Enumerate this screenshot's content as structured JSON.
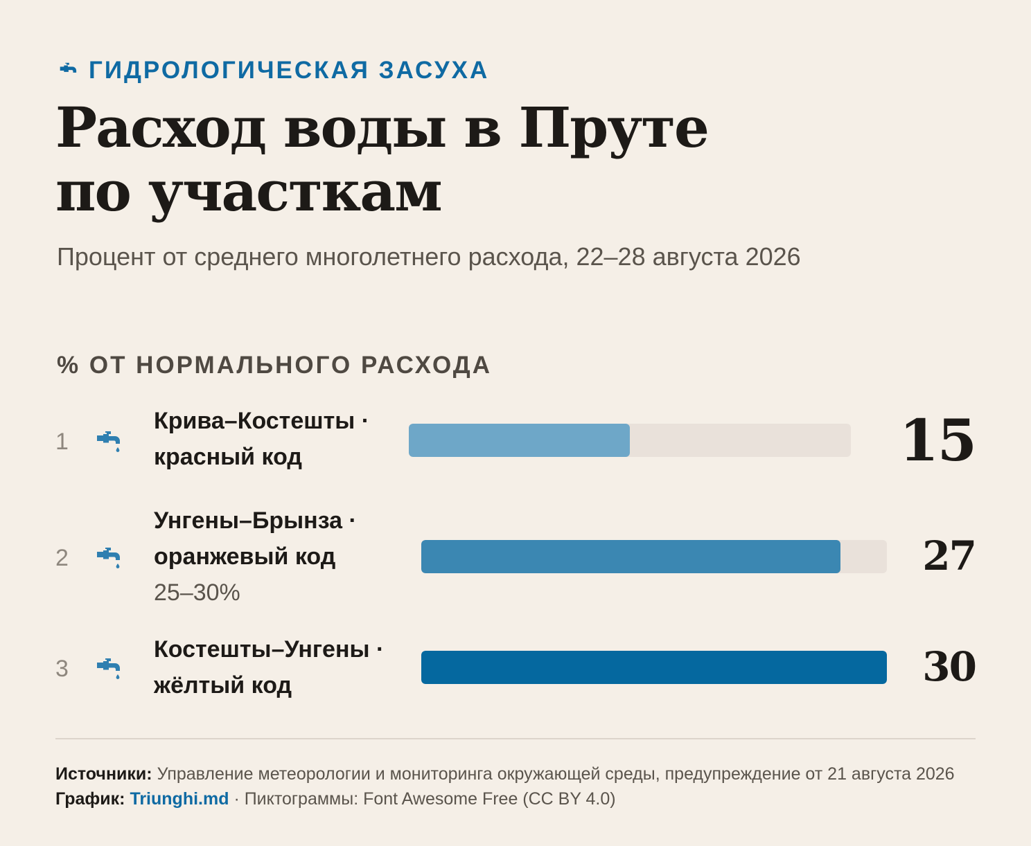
{
  "kicker": "ГИДРОЛОГИЧЕСКАЯ ЗАСУХА",
  "title": "Расход воды в Пруте по участкам",
  "subtitle": "Процент от среднего многолетнего расхода, 22–28 августа 2026",
  "colors": {
    "accent": "#0f6aa3",
    "background": "#f5efe7",
    "track": "#e9e1da"
  },
  "chart_data": {
    "type": "bar",
    "orientation": "horizontal",
    "section_label": "% ОТ НОРМАЛЬНОГО РАСХОДА",
    "icon": "faucet-drip-icon",
    "ylim": [
      0,
      30
    ],
    "rows": [
      {
        "rank": "1",
        "label": "Крива–Костешты · красный код",
        "note": "",
        "value": 15,
        "value_label": "15",
        "color": "#6ea7c8"
      },
      {
        "rank": "2",
        "label": "Унгены–Брынза · оранжевый код",
        "note": "25–30%",
        "value": 27,
        "value_label": "27",
        "color": "#3b87b2"
      },
      {
        "rank": "3",
        "label": "Костешты–Унгены · жёлтый код",
        "note": "",
        "value": 30,
        "value_label": "30",
        "color": "#05689f"
      }
    ]
  },
  "footer": {
    "sources_label": "Источники:",
    "sources_text": "Управление метеорологии и мониторинга окружающей среды, предупреждение от 21 августа 2026",
    "graphic_label": "График:",
    "graphic_brand": "Triunghi.md",
    "icons_text": "· Пиктограммы: Font Awesome Free (CC BY 4.0)"
  }
}
